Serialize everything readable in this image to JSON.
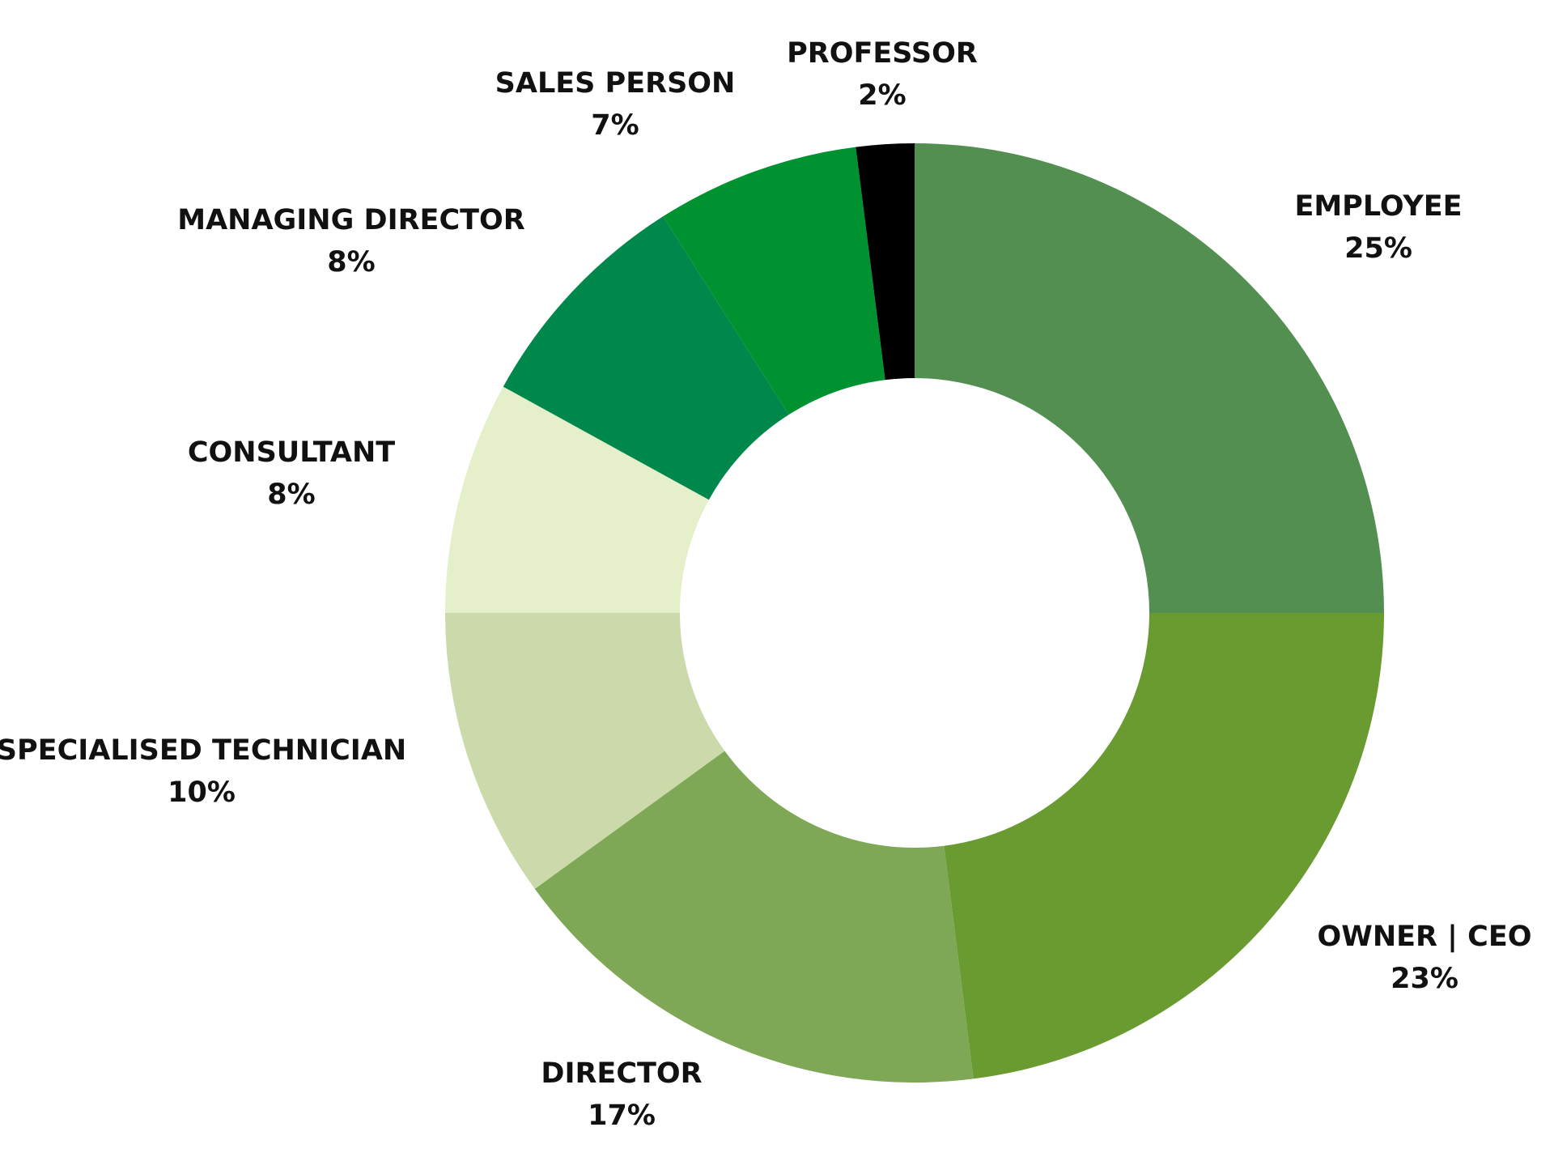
{
  "chart_data": {
    "type": "pie",
    "donut": true,
    "title": "",
    "legend": "none",
    "start_angle": "12 o'clock",
    "direction": "clockwise",
    "slices": [
      {
        "label": "EMPLOYEE",
        "value": 25,
        "value_label": "25%",
        "color": "#548f52"
      },
      {
        "label": "OWNER | CEO",
        "value": 23,
        "value_label": "23%",
        "color": "#699b31"
      },
      {
        "label": "DIRECTOR",
        "value": 17,
        "value_label": "17%",
        "color": "#7ea756"
      },
      {
        "label": "SPECIALISED TECHNICIAN",
        "value": 10,
        "value_label": "10%",
        "color": "#ccd9aa"
      },
      {
        "label": "CONSULTANT",
        "value": 8,
        "value_label": "8%",
        "color": "#e5efca"
      },
      {
        "label": "MANAGING DIRECTOR",
        "value": 8,
        "value_label": "8%",
        "color": "#00884c"
      },
      {
        "label": "SALES PERSON",
        "value": 7,
        "value_label": "7%",
        "color": "#009230"
      },
      {
        "label": "PROFESSOR",
        "value": 2,
        "value_label": "2%",
        "color": "#000000"
      }
    ]
  }
}
